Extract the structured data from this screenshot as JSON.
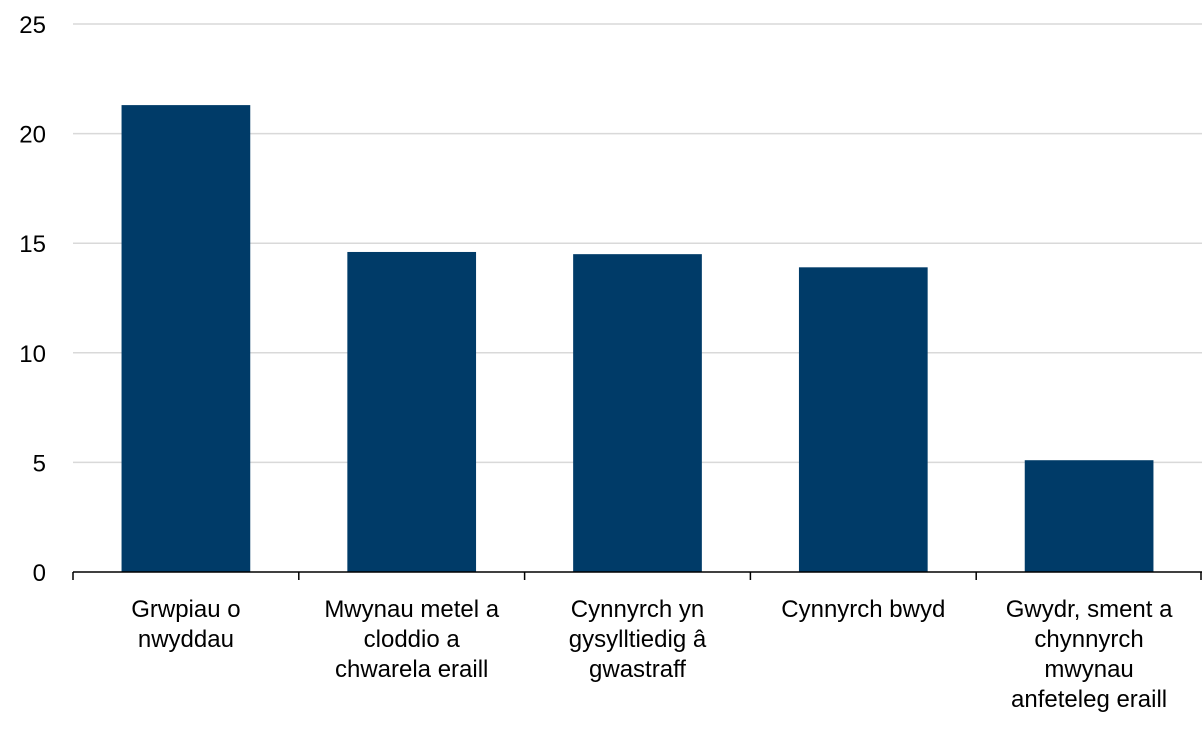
{
  "chart_data": {
    "type": "bar",
    "categories": [
      [
        "Grwpiau o",
        "nwyddau"
      ],
      [
        "Mwynau metel a",
        "cloddio a",
        "chwarela eraill"
      ],
      [
        "Cynnyrch yn",
        "gysylltiedig â",
        "gwastraff"
      ],
      [
        "Cynnyrch bwyd"
      ],
      [
        "Gwydr, sment a",
        "chynnyrch",
        "mwynau",
        "anfeteleg eraill"
      ]
    ],
    "values": [
      21.3,
      14.6,
      14.5,
      13.9,
      5.1
    ],
    "ylim": [
      0,
      25
    ],
    "yticks": [
      0,
      5,
      10,
      15,
      20,
      25
    ],
    "title": "",
    "xlabel": "",
    "ylabel": "",
    "grid": true,
    "legend": "none",
    "colors": {
      "bar": "#003B68",
      "grid": "#D9D9D9",
      "axis": "#000000"
    }
  }
}
